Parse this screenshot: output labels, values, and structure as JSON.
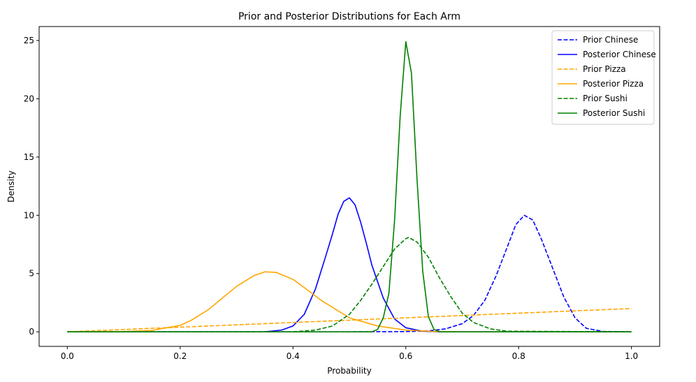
{
  "chart_data": {
    "type": "line",
    "title": "Prior and Posterior Distributions for Each Arm",
    "xlabel": "Probability",
    "ylabel": "Density",
    "xlim": [
      -0.05,
      1.05
    ],
    "ylim": [
      -1.25,
      26.2
    ],
    "xticks": [
      0.0,
      0.2,
      0.4,
      0.6,
      0.8,
      1.0
    ],
    "xtick_labels": [
      "0.0",
      "0.2",
      "0.4",
      "0.6",
      "0.8",
      "1.0"
    ],
    "yticks": [
      0,
      5,
      10,
      15,
      20,
      25
    ],
    "ytick_labels": [
      "0",
      "5",
      "10",
      "15",
      "20",
      "25"
    ],
    "grid": false,
    "legend_position": "top-right",
    "series": [
      {
        "name": "Prior Chinese",
        "color": "#0000ff",
        "style": "dashed",
        "x": [
          0.0,
          0.5,
          0.6,
          0.64,
          0.67,
          0.7,
          0.72,
          0.74,
          0.76,
          0.78,
          0.795,
          0.81,
          0.825,
          0.84,
          0.86,
          0.88,
          0.9,
          0.92,
          0.95,
          1.0
        ],
        "y": [
          0.0,
          0.0,
          0.02,
          0.08,
          0.25,
          0.7,
          1.4,
          2.7,
          4.8,
          7.3,
          9.2,
          10.0,
          9.6,
          8.0,
          5.5,
          3.0,
          1.2,
          0.3,
          0.03,
          0.0
        ]
      },
      {
        "name": "Posterior Chinese",
        "color": "#0000ff",
        "style": "solid",
        "x": [
          0.0,
          0.35,
          0.38,
          0.4,
          0.42,
          0.44,
          0.46,
          0.47,
          0.48,
          0.49,
          0.5,
          0.51,
          0.52,
          0.53,
          0.54,
          0.56,
          0.58,
          0.6,
          0.63,
          0.66,
          1.0
        ],
        "y": [
          0.0,
          0.0,
          0.15,
          0.5,
          1.5,
          3.7,
          6.8,
          8.4,
          10.1,
          11.2,
          11.5,
          10.9,
          9.4,
          7.6,
          5.7,
          2.9,
          1.1,
          0.35,
          0.05,
          0.0,
          0.0
        ]
      },
      {
        "name": "Prior Pizza",
        "color": "#ffa500",
        "style": "dashed",
        "x": [
          0.0,
          1.0
        ],
        "y": [
          0.0,
          2.0
        ]
      },
      {
        "name": "Posterior Pizza",
        "color": "#ffa500",
        "style": "solid",
        "x": [
          0.0,
          0.1,
          0.15,
          0.2,
          0.22,
          0.25,
          0.28,
          0.3,
          0.33,
          0.35,
          0.37,
          0.4,
          0.42,
          0.45,
          0.48,
          0.5,
          0.55,
          0.6,
          0.65,
          0.7,
          1.0
        ],
        "y": [
          0.0,
          0.03,
          0.12,
          0.55,
          1.0,
          1.9,
          3.1,
          3.9,
          4.8,
          5.15,
          5.1,
          4.5,
          3.8,
          2.7,
          1.8,
          1.2,
          0.5,
          0.15,
          0.03,
          0.0,
          0.0
        ]
      },
      {
        "name": "Prior Sushi",
        "color": "#008000",
        "style": "dashed",
        "x": [
          0.0,
          0.4,
          0.44,
          0.47,
          0.5,
          0.52,
          0.54,
          0.56,
          0.58,
          0.6,
          0.605,
          0.62,
          0.64,
          0.66,
          0.68,
          0.7,
          0.72,
          0.75,
          0.78,
          1.0
        ],
        "y": [
          0.0,
          0.0,
          0.15,
          0.5,
          1.5,
          2.7,
          4.1,
          5.6,
          7.1,
          8.0,
          8.1,
          7.7,
          6.4,
          4.6,
          3.0,
          1.6,
          0.8,
          0.25,
          0.05,
          0.0
        ]
      },
      {
        "name": "Posterior Sushi",
        "color": "#008000",
        "style": "solid",
        "x": [
          0.0,
          0.54,
          0.55,
          0.56,
          0.57,
          0.58,
          0.59,
          0.6,
          0.61,
          0.62,
          0.63,
          0.64,
          0.65,
          0.66,
          1.0
        ],
        "y": [
          0.0,
          0.0,
          0.2,
          1.2,
          3.3,
          9.5,
          18.5,
          24.9,
          22.2,
          13.0,
          5.2,
          1.3,
          0.2,
          0.0,
          0.0
        ]
      }
    ]
  }
}
